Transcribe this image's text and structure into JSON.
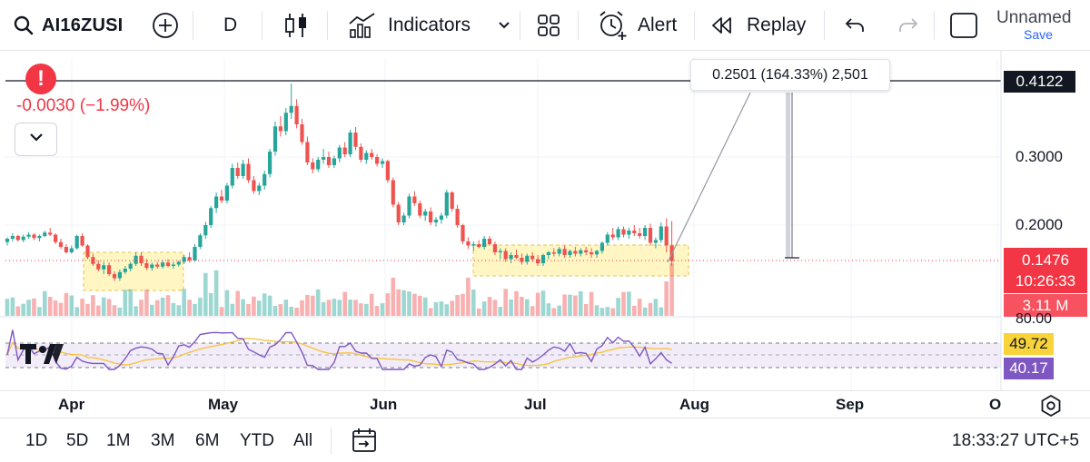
{
  "toolbar": {
    "symbol": "AI16ZUSI",
    "interval": "D",
    "indicators_label": "Indicators",
    "alert_label": "Alert",
    "replay_label": "Replay",
    "layout_name": "Unnamed",
    "save_label": "Save",
    "icons": [
      "search-icon",
      "add-symbol-icon",
      "candles-icon",
      "indicators-icon",
      "chevron-down-icon",
      "templates-icon",
      "alert-clock-icon",
      "replay-icon",
      "undo-icon",
      "redo-icon",
      "fullscreen-icon"
    ]
  },
  "legend": {
    "change": "-0.0030 (−1.99%)",
    "alert_mark": "!"
  },
  "measure_tool": {
    "label": "0.2501 (164.33%) 2,501"
  },
  "price_axis": {
    "top_tag": "0.4122",
    "ticks": [
      "0.3000",
      "0.2000"
    ],
    "current_price": "0.1476",
    "countdown": "10:26:33",
    "volume": "3.11 M",
    "rsi_upper": "80.00",
    "rsi_ma": "49.72",
    "rsi_value": "40.17"
  },
  "time_axis": {
    "months": [
      "Apr",
      "May",
      "Jun",
      "Jul",
      "Aug",
      "Sep",
      "O"
    ]
  },
  "bottom_bar": {
    "ranges": [
      "1D",
      "5D",
      "1M",
      "3M",
      "6M",
      "YTD",
      "All"
    ],
    "clock": "18:33:27 UTC+5"
  },
  "colors": {
    "up": "#26a69a",
    "down": "#ef5350",
    "rsi_line": "#7e57c2",
    "rsi_ma": "#f9d33a",
    "highlight_box": "#fff3b0"
  },
  "chart_data": {
    "type": "candlestick",
    "x_start": "2025-03-13",
    "x_end": "2025-07-24",
    "price_range": [
      0.11,
      0.41
    ],
    "candles": [
      [
        0.175,
        0.182,
        0.17,
        0.18
      ],
      [
        0.18,
        0.188,
        0.176,
        0.184
      ],
      [
        0.184,
        0.186,
        0.176,
        0.178
      ],
      [
        0.178,
        0.186,
        0.175,
        0.183
      ],
      [
        0.183,
        0.19,
        0.18,
        0.186
      ],
      [
        0.186,
        0.188,
        0.178,
        0.181
      ],
      [
        0.181,
        0.186,
        0.176,
        0.184
      ],
      [
        0.184,
        0.192,
        0.182,
        0.189
      ],
      [
        0.189,
        0.196,
        0.184,
        0.186
      ],
      [
        0.186,
        0.188,
        0.172,
        0.175
      ],
      [
        0.175,
        0.18,
        0.165,
        0.168
      ],
      [
        0.168,
        0.172,
        0.158,
        0.16
      ],
      [
        0.16,
        0.17,
        0.158,
        0.166
      ],
      [
        0.166,
        0.186,
        0.164,
        0.184
      ],
      [
        0.184,
        0.188,
        0.168,
        0.17
      ],
      [
        0.17,
        0.172,
        0.15,
        0.153
      ],
      [
        0.153,
        0.158,
        0.14,
        0.143
      ],
      [
        0.143,
        0.148,
        0.132,
        0.135
      ],
      [
        0.135,
        0.146,
        0.128,
        0.141
      ],
      [
        0.141,
        0.145,
        0.125,
        0.128
      ],
      [
        0.128,
        0.132,
        0.118,
        0.122
      ],
      [
        0.122,
        0.135,
        0.118,
        0.131
      ],
      [
        0.131,
        0.14,
        0.128,
        0.136
      ],
      [
        0.136,
        0.146,
        0.132,
        0.143
      ],
      [
        0.143,
        0.16,
        0.14,
        0.155
      ],
      [
        0.155,
        0.16,
        0.14,
        0.144
      ],
      [
        0.144,
        0.15,
        0.134,
        0.137
      ],
      [
        0.137,
        0.145,
        0.133,
        0.142
      ],
      [
        0.142,
        0.146,
        0.136,
        0.139
      ],
      [
        0.139,
        0.148,
        0.136,
        0.145
      ],
      [
        0.145,
        0.15,
        0.138,
        0.14
      ],
      [
        0.14,
        0.146,
        0.136,
        0.142
      ],
      [
        0.142,
        0.148,
        0.139,
        0.146
      ],
      [
        0.146,
        0.156,
        0.143,
        0.153
      ],
      [
        0.153,
        0.16,
        0.145,
        0.148
      ],
      [
        0.148,
        0.172,
        0.146,
        0.168
      ],
      [
        0.168,
        0.188,
        0.165,
        0.185
      ],
      [
        0.185,
        0.205,
        0.18,
        0.2
      ],
      [
        0.2,
        0.228,
        0.196,
        0.225
      ],
      [
        0.225,
        0.248,
        0.218,
        0.242
      ],
      [
        0.242,
        0.252,
        0.232,
        0.236
      ],
      [
        0.236,
        0.262,
        0.232,
        0.258
      ],
      [
        0.258,
        0.29,
        0.254,
        0.284
      ],
      [
        0.284,
        0.292,
        0.268,
        0.272
      ],
      [
        0.272,
        0.296,
        0.268,
        0.29
      ],
      [
        0.29,
        0.298,
        0.262,
        0.266
      ],
      [
        0.266,
        0.272,
        0.246,
        0.25
      ],
      [
        0.25,
        0.262,
        0.244,
        0.258
      ],
      [
        0.258,
        0.28,
        0.252,
        0.275
      ],
      [
        0.275,
        0.312,
        0.27,
        0.308
      ],
      [
        0.308,
        0.352,
        0.302,
        0.345
      ],
      [
        0.345,
        0.36,
        0.33,
        0.338
      ],
      [
        0.338,
        0.372,
        0.332,
        0.365
      ],
      [
        0.365,
        0.408,
        0.356,
        0.375
      ],
      [
        0.375,
        0.385,
        0.342,
        0.348
      ],
      [
        0.348,
        0.356,
        0.318,
        0.322
      ],
      [
        0.322,
        0.33,
        0.288,
        0.292
      ],
      [
        0.292,
        0.298,
        0.276,
        0.282
      ],
      [
        0.282,
        0.3,
        0.278,
        0.296
      ],
      [
        0.296,
        0.312,
        0.29,
        0.3
      ],
      [
        0.3,
        0.308,
        0.284,
        0.288
      ],
      [
        0.288,
        0.302,
        0.284,
        0.298
      ],
      [
        0.298,
        0.318,
        0.292,
        0.314
      ],
      [
        0.314,
        0.322,
        0.3,
        0.304
      ],
      [
        0.304,
        0.34,
        0.3,
        0.336
      ],
      [
        0.336,
        0.344,
        0.31,
        0.315
      ],
      [
        0.315,
        0.32,
        0.292,
        0.296
      ],
      [
        0.296,
        0.31,
        0.29,
        0.306
      ],
      [
        0.306,
        0.312,
        0.296,
        0.3
      ],
      [
        0.3,
        0.304,
        0.286,
        0.29
      ],
      [
        0.29,
        0.298,
        0.284,
        0.294
      ],
      [
        0.294,
        0.296,
        0.262,
        0.266
      ],
      [
        0.266,
        0.27,
        0.226,
        0.23
      ],
      [
        0.23,
        0.234,
        0.2,
        0.204
      ],
      [
        0.204,
        0.218,
        0.2,
        0.214
      ],
      [
        0.214,
        0.246,
        0.21,
        0.242
      ],
      [
        0.242,
        0.25,
        0.228,
        0.232
      ],
      [
        0.232,
        0.236,
        0.21,
        0.214
      ],
      [
        0.214,
        0.224,
        0.206,
        0.22
      ],
      [
        0.22,
        0.226,
        0.2,
        0.204
      ],
      [
        0.204,
        0.212,
        0.198,
        0.208
      ],
      [
        0.208,
        0.218,
        0.202,
        0.214
      ],
      [
        0.214,
        0.252,
        0.21,
        0.248
      ],
      [
        0.248,
        0.25,
        0.22,
        0.224
      ],
      [
        0.224,
        0.23,
        0.196,
        0.2
      ],
      [
        0.2,
        0.202,
        0.172,
        0.176
      ],
      [
        0.176,
        0.182,
        0.165,
        0.17
      ],
      [
        0.17,
        0.176,
        0.162,
        0.172
      ],
      [
        0.172,
        0.178,
        0.166,
        0.168
      ],
      [
        0.168,
        0.184,
        0.164,
        0.18
      ],
      [
        0.18,
        0.184,
        0.17,
        0.172
      ],
      [
        0.172,
        0.176,
        0.156,
        0.16
      ],
      [
        0.16,
        0.166,
        0.15,
        0.162
      ],
      [
        0.162,
        0.166,
        0.146,
        0.15
      ],
      [
        0.15,
        0.16,
        0.144,
        0.156
      ],
      [
        0.156,
        0.164,
        0.15,
        0.152
      ],
      [
        0.152,
        0.158,
        0.142,
        0.146
      ],
      [
        0.146,
        0.158,
        0.142,
        0.155
      ],
      [
        0.155,
        0.16,
        0.146,
        0.15
      ],
      [
        0.15,
        0.156,
        0.14,
        0.144
      ],
      [
        0.144,
        0.158,
        0.14,
        0.156
      ],
      [
        0.156,
        0.162,
        0.15,
        0.16
      ],
      [
        0.16,
        0.166,
        0.154,
        0.158
      ],
      [
        0.158,
        0.168,
        0.154,
        0.165
      ],
      [
        0.165,
        0.17,
        0.152,
        0.156
      ],
      [
        0.156,
        0.164,
        0.152,
        0.162
      ],
      [
        0.162,
        0.168,
        0.154,
        0.158
      ],
      [
        0.158,
        0.166,
        0.154,
        0.163
      ],
      [
        0.163,
        0.168,
        0.156,
        0.16
      ],
      [
        0.16,
        0.166,
        0.152,
        0.157
      ],
      [
        0.157,
        0.164,
        0.152,
        0.162
      ],
      [
        0.162,
        0.176,
        0.158,
        0.174
      ],
      [
        0.174,
        0.19,
        0.17,
        0.186
      ],
      [
        0.186,
        0.196,
        0.178,
        0.182
      ],
      [
        0.182,
        0.198,
        0.178,
        0.194
      ],
      [
        0.194,
        0.198,
        0.182,
        0.186
      ],
      [
        0.186,
        0.196,
        0.18,
        0.192
      ],
      [
        0.192,
        0.2,
        0.184,
        0.188
      ],
      [
        0.188,
        0.196,
        0.18,
        0.184
      ],
      [
        0.184,
        0.2,
        0.178,
        0.196
      ],
      [
        0.196,
        0.202,
        0.17,
        0.174
      ],
      [
        0.174,
        0.182,
        0.166,
        0.178
      ],
      [
        0.178,
        0.204,
        0.174,
        0.198
      ],
      [
        0.198,
        0.21,
        0.16,
        0.17
      ],
      [
        0.17,
        0.206,
        0.14,
        0.147
      ]
    ],
    "volume_scale": [
      0,
      10
    ]
  }
}
